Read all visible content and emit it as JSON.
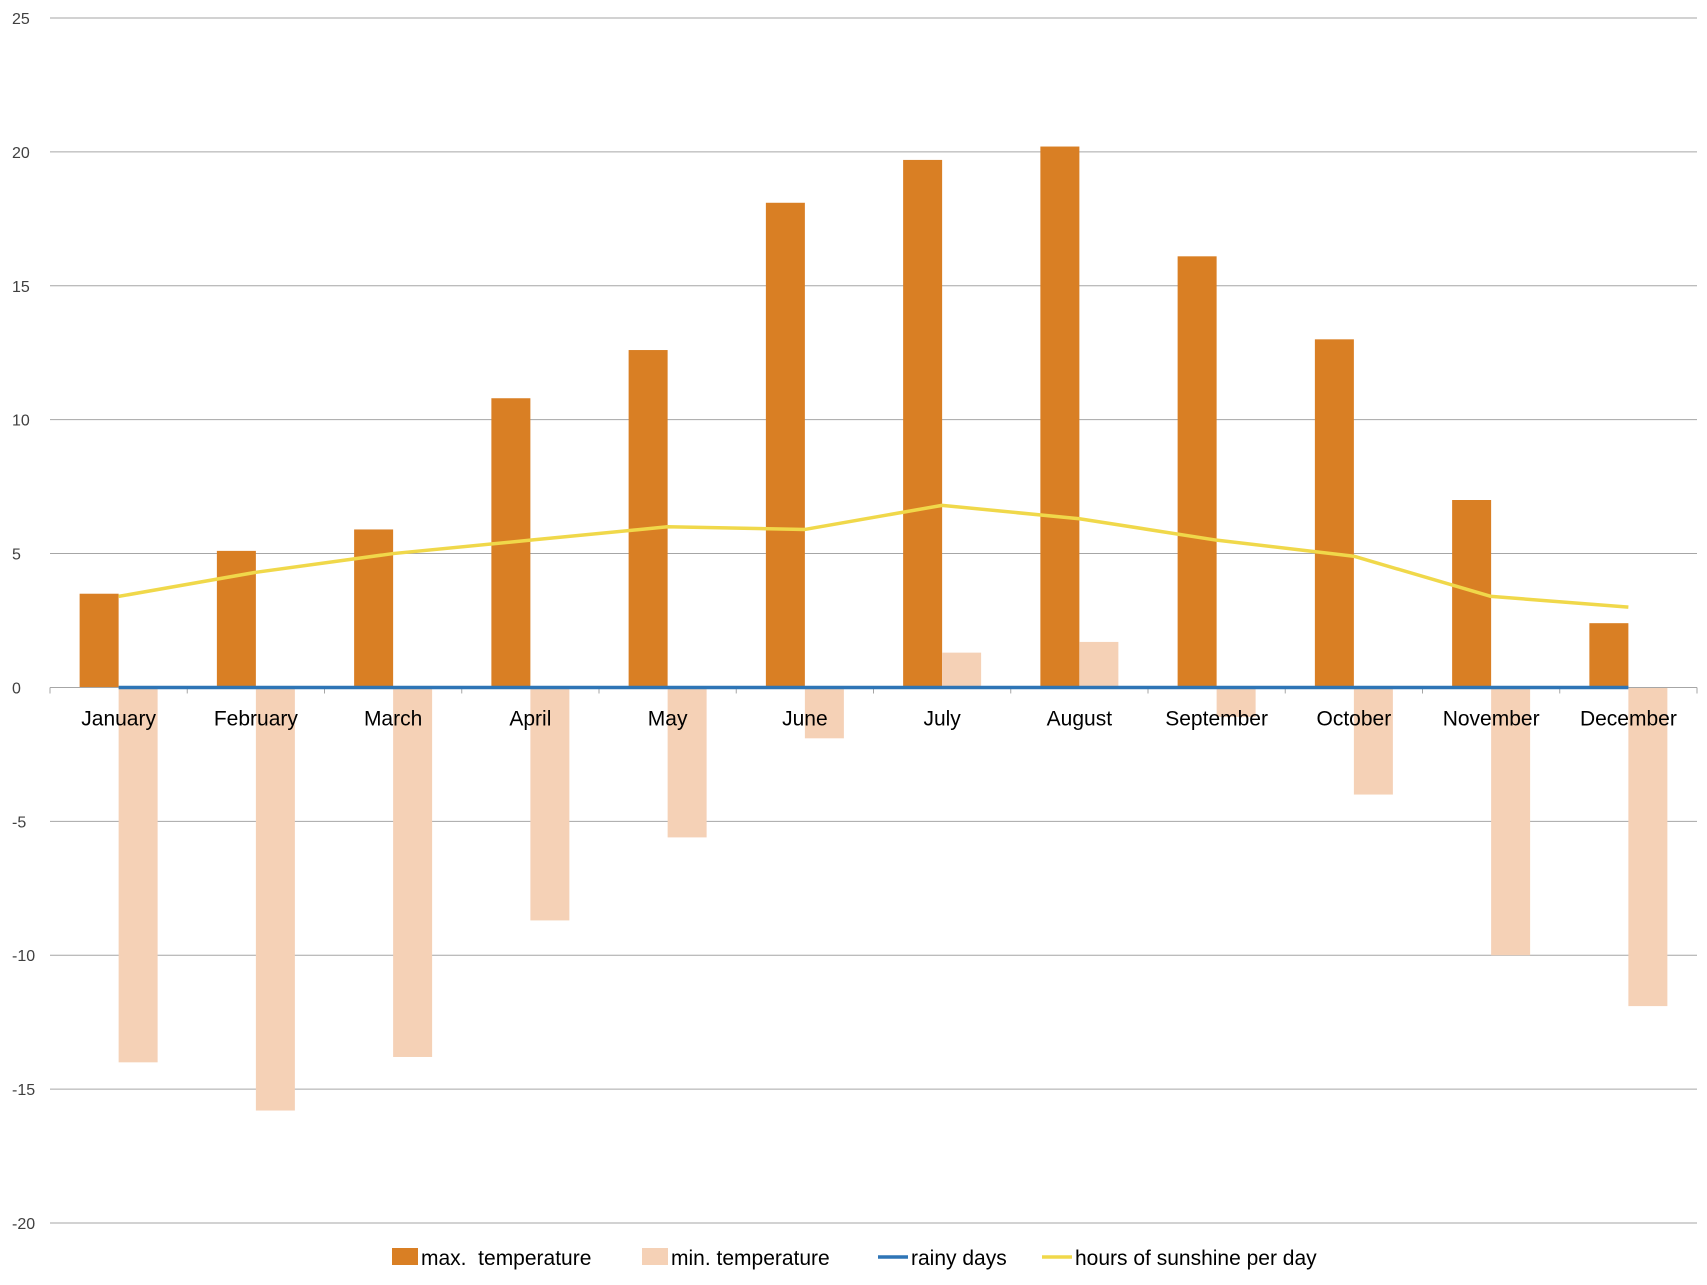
{
  "chart_data": {
    "type": "bar",
    "categories": [
      "January",
      "February",
      "March",
      "April",
      "May",
      "June",
      "July",
      "August",
      "September",
      "October",
      "November",
      "December"
    ],
    "series": [
      {
        "name": "max.  temperature",
        "kind": "bar",
        "color": "#D97F24",
        "values": [
          3.5,
          5.1,
          5.9,
          10.8,
          12.6,
          18.1,
          19.7,
          20.2,
          16.1,
          13.0,
          7.0,
          2.4
        ]
      },
      {
        "name": "min. temperature",
        "kind": "bar",
        "color": "#F5D1B6",
        "values": [
          -14.0,
          -15.8,
          -13.8,
          -8.7,
          -5.6,
          -1.9,
          1.3,
          1.7,
          -1.1,
          -4.0,
          -10.0,
          -11.9
        ]
      },
      {
        "name": "rainy days",
        "kind": "line",
        "color": "#2E75B6",
        "values": [
          0,
          0,
          0,
          0,
          0,
          0,
          0,
          0,
          0,
          0,
          0,
          0
        ]
      },
      {
        "name": "hours of sunshine per day",
        "kind": "line",
        "color": "#F0D84A",
        "values": [
          3.4,
          4.3,
          5.0,
          5.5,
          6.0,
          5.9,
          6.8,
          6.3,
          5.5,
          4.9,
          3.4,
          3.0
        ]
      }
    ],
    "yticks": [
      "25",
      "20",
      "15",
      "10",
      "5",
      "0",
      "-5",
      "-10",
      "-15",
      "-20"
    ],
    "ylim": [
      -20,
      25
    ],
    "grid": true,
    "legend_position": "bottom"
  }
}
